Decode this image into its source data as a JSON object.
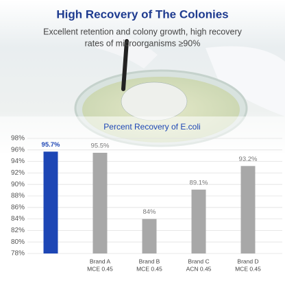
{
  "title": "High Recovery of The Colonies",
  "subtitle_lines": [
    "Excellent retention and colony growth, high recovery",
    "rates of microorganisms ≥90%"
  ],
  "chart_data": {
    "type": "bar",
    "title": "Percent Recovery of E.coli",
    "categories": [
      null,
      "Brand A",
      "Brand B",
      "Brand C",
      "Brand D"
    ],
    "category_sublabels": [
      null,
      "MCE 0.45",
      "MCE 0.45",
      "ACN 0.45",
      "MCE 0.45"
    ],
    "values": [
      95.7,
      95.5,
      84,
      89.1,
      93.2
    ],
    "value_labels": [
      "95.7%",
      "95.5%",
      "84%",
      "89.1%",
      "93.2%"
    ],
    "colors": [
      "#1d46b5",
      "#a8a8a8",
      "#a8a8a8",
      "#a8a8a8",
      "#a8a8a8"
    ],
    "ylim": [
      78,
      98
    ],
    "yticks": [
      {
        "value": 78,
        "label": "78%"
      },
      {
        "value": 80,
        "label": "80%"
      },
      {
        "value": 82,
        "label": "82%"
      },
      {
        "value": 84,
        "label": "84%"
      },
      {
        "value": 86,
        "label": "86%"
      },
      {
        "value": 88,
        "label": "88%"
      },
      {
        "value": 90,
        "label": "90%"
      },
      {
        "value": 92,
        "label": "92%"
      },
      {
        "value": 94,
        "label": "94%"
      },
      {
        "value": 96,
        "label": "96%"
      },
      {
        "value": 98,
        "label": "98%"
      }
    ],
    "grid": true
  }
}
